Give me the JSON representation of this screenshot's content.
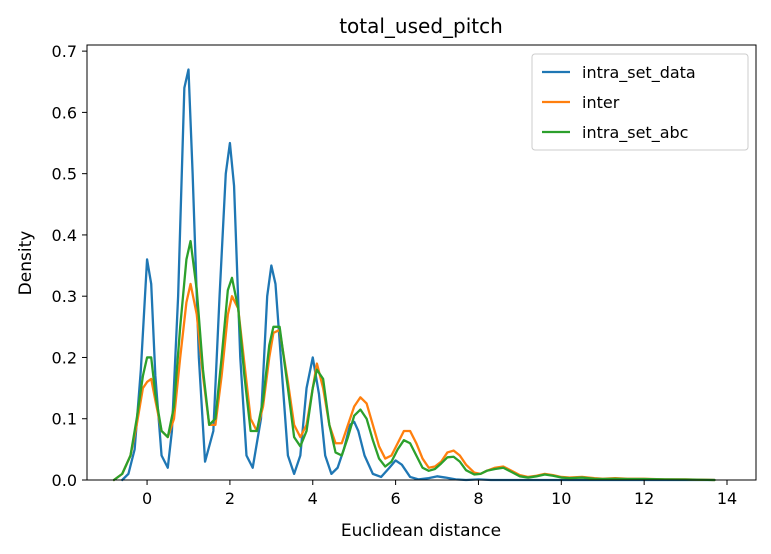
{
  "chart_data": {
    "type": "line",
    "title": "total_used_pitch",
    "xlabel": "Euclidean distance",
    "ylabel": "Density",
    "xlim": [
      -1.45,
      14.7
    ],
    "ylim": [
      0,
      0.71
    ],
    "xticks": [
      0,
      2,
      4,
      6,
      8,
      10,
      12,
      14
    ],
    "yticks": [
      0.0,
      0.1,
      0.2,
      0.3,
      0.4,
      0.5,
      0.6,
      0.7
    ],
    "ytick_labels": [
      "0.0",
      "0.1",
      "0.2",
      "0.3",
      "0.4",
      "0.5",
      "0.6",
      "0.7"
    ],
    "legend_position": "top-right",
    "grid": false,
    "series": [
      {
        "name": "intra_set_data",
        "color": "#1f77b4",
        "x": [
          -0.6,
          -0.45,
          -0.3,
          -0.15,
          -0.05,
          0.0,
          0.1,
          0.2,
          0.35,
          0.5,
          0.6,
          0.75,
          0.9,
          1.0,
          1.1,
          1.25,
          1.4,
          1.6,
          1.75,
          1.9,
          2.0,
          2.1,
          2.25,
          2.4,
          2.55,
          2.75,
          2.9,
          3.0,
          3.1,
          3.25,
          3.4,
          3.55,
          3.7,
          3.85,
          4.0,
          4.15,
          4.3,
          4.45,
          4.6,
          4.75,
          4.9,
          5.0,
          5.1,
          5.25,
          5.45,
          5.65,
          5.85,
          6.0,
          6.15,
          6.35,
          6.55,
          6.8,
          7.0,
          7.2,
          7.45,
          7.7,
          8.0,
          8.3,
          8.6,
          9.0,
          9.5,
          10.0,
          10.5,
          11.0,
          12.0,
          13.0,
          13.7
        ],
        "y": [
          0.0,
          0.01,
          0.05,
          0.18,
          0.3,
          0.36,
          0.32,
          0.17,
          0.04,
          0.02,
          0.08,
          0.3,
          0.64,
          0.67,
          0.5,
          0.2,
          0.03,
          0.08,
          0.3,
          0.5,
          0.55,
          0.48,
          0.2,
          0.04,
          0.02,
          0.1,
          0.3,
          0.35,
          0.32,
          0.18,
          0.04,
          0.01,
          0.04,
          0.15,
          0.2,
          0.14,
          0.04,
          0.01,
          0.02,
          0.05,
          0.09,
          0.095,
          0.08,
          0.04,
          0.01,
          0.005,
          0.02,
          0.032,
          0.025,
          0.005,
          0.001,
          0.003,
          0.006,
          0.004,
          0.001,
          0.0,
          0.001,
          0.0,
          0.0,
          0.0,
          0.0,
          0.0,
          0.0,
          0.0,
          0.0,
          0.0,
          0.0
        ]
      },
      {
        "name": "inter",
        "color": "#ff7f0e",
        "x": [
          -0.8,
          -0.6,
          -0.4,
          -0.25,
          -0.1,
          0.0,
          0.1,
          0.2,
          0.35,
          0.5,
          0.65,
          0.8,
          0.95,
          1.05,
          1.2,
          1.35,
          1.5,
          1.65,
          1.8,
          1.95,
          2.05,
          2.2,
          2.35,
          2.5,
          2.65,
          2.8,
          2.95,
          3.05,
          3.2,
          3.4,
          3.55,
          3.7,
          3.85,
          4.0,
          4.1,
          4.25,
          4.4,
          4.55,
          4.7,
          4.85,
          5.0,
          5.15,
          5.3,
          5.45,
          5.6,
          5.75,
          5.9,
          6.05,
          6.2,
          6.35,
          6.5,
          6.65,
          6.8,
          6.95,
          7.1,
          7.25,
          7.4,
          7.55,
          7.7,
          7.9,
          8.05,
          8.2,
          8.4,
          8.6,
          8.8,
          9.0,
          9.2,
          9.4,
          9.6,
          9.8,
          10.0,
          10.2,
          10.5,
          10.8,
          11.0,
          11.3,
          11.6,
          12.0,
          12.5,
          13.0,
          13.7
        ],
        "y": [
          0.0,
          0.01,
          0.04,
          0.09,
          0.15,
          0.16,
          0.165,
          0.13,
          0.08,
          0.07,
          0.1,
          0.2,
          0.29,
          0.32,
          0.27,
          0.17,
          0.09,
          0.09,
          0.17,
          0.27,
          0.3,
          0.28,
          0.19,
          0.1,
          0.08,
          0.12,
          0.2,
          0.24,
          0.245,
          0.16,
          0.09,
          0.07,
          0.09,
          0.15,
          0.19,
          0.15,
          0.09,
          0.06,
          0.06,
          0.09,
          0.12,
          0.135,
          0.125,
          0.09,
          0.055,
          0.035,
          0.04,
          0.06,
          0.08,
          0.08,
          0.06,
          0.035,
          0.02,
          0.022,
          0.03,
          0.045,
          0.048,
          0.04,
          0.025,
          0.012,
          0.01,
          0.015,
          0.02,
          0.022,
          0.015,
          0.008,
          0.005,
          0.007,
          0.01,
          0.008,
          0.005,
          0.004,
          0.005,
          0.003,
          0.002,
          0.003,
          0.002,
          0.002,
          0.001,
          0.001,
          0.0
        ]
      },
      {
        "name": "intra_set_abc",
        "color": "#2ca02c",
        "x": [
          -0.8,
          -0.6,
          -0.4,
          -0.25,
          -0.1,
          0.0,
          0.1,
          0.2,
          0.35,
          0.5,
          0.65,
          0.8,
          0.95,
          1.05,
          1.2,
          1.35,
          1.5,
          1.65,
          1.8,
          1.95,
          2.05,
          2.2,
          2.35,
          2.5,
          2.65,
          2.8,
          2.95,
          3.05,
          3.2,
          3.4,
          3.55,
          3.7,
          3.85,
          4.0,
          4.1,
          4.25,
          4.4,
          4.55,
          4.7,
          4.85,
          5.0,
          5.15,
          5.3,
          5.45,
          5.6,
          5.75,
          5.9,
          6.05,
          6.2,
          6.35,
          6.5,
          6.65,
          6.8,
          6.95,
          7.1,
          7.25,
          7.4,
          7.55,
          7.7,
          7.9,
          8.05,
          8.2,
          8.4,
          8.6,
          8.8,
          9.0,
          9.2,
          9.4,
          9.6,
          9.8,
          10.0,
          10.2,
          10.5,
          10.8,
          11.0,
          11.3,
          11.6,
          12.0,
          12.5,
          13.0,
          13.7
        ],
        "y": [
          0.0,
          0.01,
          0.04,
          0.1,
          0.17,
          0.2,
          0.2,
          0.14,
          0.08,
          0.07,
          0.12,
          0.25,
          0.36,
          0.39,
          0.31,
          0.18,
          0.09,
          0.1,
          0.2,
          0.31,
          0.33,
          0.28,
          0.17,
          0.08,
          0.08,
          0.13,
          0.22,
          0.25,
          0.25,
          0.15,
          0.07,
          0.055,
          0.08,
          0.15,
          0.18,
          0.165,
          0.09,
          0.045,
          0.04,
          0.07,
          0.105,
          0.115,
          0.1,
          0.065,
          0.035,
          0.022,
          0.03,
          0.05,
          0.065,
          0.06,
          0.04,
          0.02,
          0.015,
          0.018,
          0.027,
          0.037,
          0.038,
          0.03,
          0.016,
          0.009,
          0.01,
          0.015,
          0.018,
          0.02,
          0.013,
          0.006,
          0.004,
          0.006,
          0.009,
          0.007,
          0.004,
          0.003,
          0.004,
          0.002,
          0.0015,
          0.002,
          0.0015,
          0.0015,
          0.001,
          0.0008,
          0.0
        ]
      }
    ]
  }
}
